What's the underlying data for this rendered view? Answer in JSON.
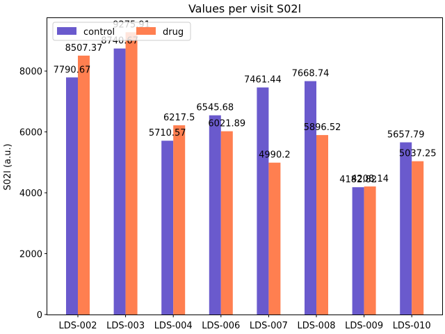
{
  "chart_data": {
    "type": "bar",
    "title": "Values per visit S02l",
    "xlabel": "",
    "ylabel": "S02l (a.u.)",
    "categories": [
      "LDS-002",
      "LDS-003",
      "LDS-004",
      "LDS-006",
      "LDS-007",
      "LDS-008",
      "LDS-009",
      "LDS-010"
    ],
    "series": [
      {
        "name": "control",
        "color": "#6a5acd",
        "values": [
          7790.67,
          8740.67,
          5710.57,
          6545.68,
          7461.44,
          7668.74,
          4182.82,
          5657.79
        ]
      },
      {
        "name": "drug",
        "color": "#ff7f50",
        "values": [
          8507.37,
          9275.91,
          6217.5,
          6021.89,
          4990.2,
          5896.52,
          4208.14,
          5037.25
        ]
      }
    ],
    "ylim": [
      0,
      9740
    ],
    "yticks": [
      0,
      2000,
      4000,
      6000,
      8000
    ],
    "legend_position": "top-left",
    "grid": false
  }
}
